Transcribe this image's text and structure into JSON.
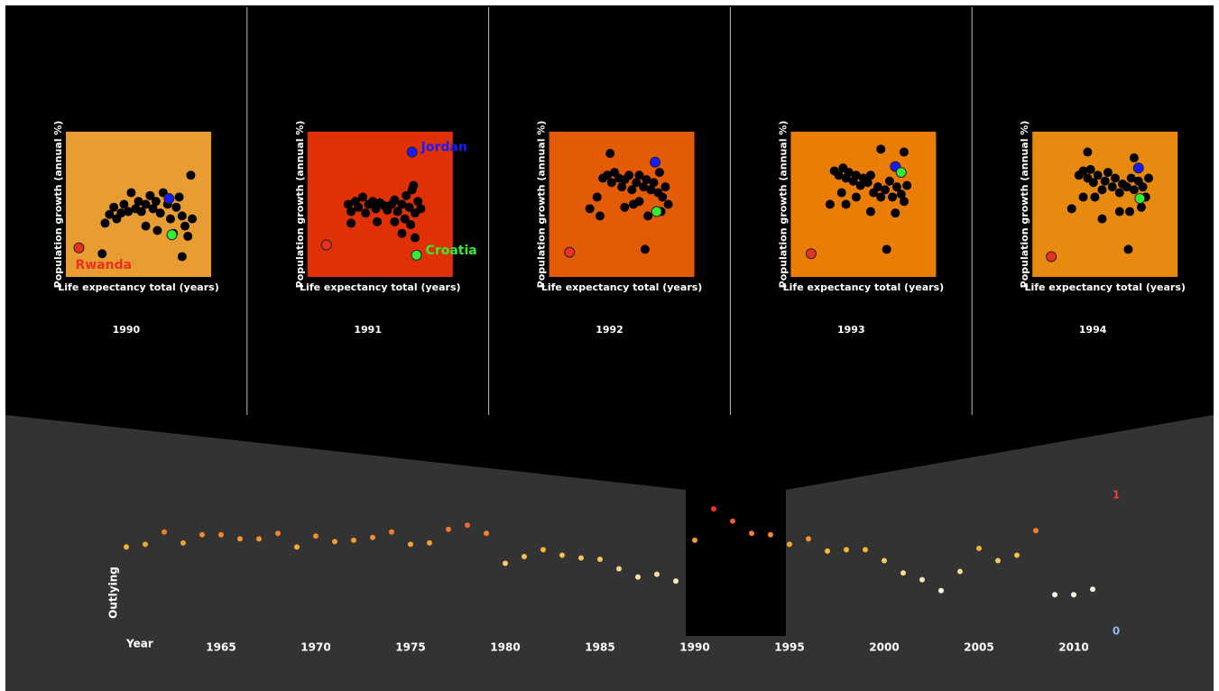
{
  "chart_data": [
    {
      "type": "scatter",
      "title": 1990,
      "xlabel": "Life expectancy total (years)",
      "ylabel": "Population growth (annual %)",
      "background": "#e89d33",
      "xlim": [
        0,
        1
      ],
      "ylim": [
        0,
        1
      ],
      "series": [
        {
          "color": "#000000",
          "x": [
            0.27,
            0.3,
            0.33,
            0.35,
            0.38,
            0.4,
            0.43,
            0.45,
            0.48,
            0.5,
            0.52,
            0.55,
            0.58,
            0.6,
            0.62,
            0.65,
            0.67,
            0.7,
            0.72,
            0.74,
            0.76,
            0.78,
            0.8,
            0.82,
            0.84,
            0.86,
            0.87,
            0.8,
            0.25,
            0.55,
            0.63
          ],
          "y": [
            0.37,
            0.43,
            0.48,
            0.4,
            0.44,
            0.5,
            0.45,
            0.58,
            0.47,
            0.52,
            0.45,
            0.5,
            0.56,
            0.47,
            0.52,
            0.44,
            0.58,
            0.5,
            0.4,
            0.3,
            0.48,
            0.55,
            0.42,
            0.35,
            0.28,
            0.7,
            0.4,
            0.14,
            0.16,
            0.35,
            0.32
          ]
        },
        {
          "name": "Rwanda",
          "color": "#e8311f",
          "x": [
            0.09
          ],
          "y": [
            0.2
          ]
        },
        {
          "color": "#1a1aff",
          "x": [
            0.71
          ],
          "y": [
            0.54
          ]
        },
        {
          "color": "#33ee33",
          "x": [
            0.73
          ],
          "y": [
            0.29
          ]
        }
      ]
    },
    {
      "type": "scatter",
      "title": 1991,
      "xlabel": "Life expectancy total (years)",
      "ylabel": "Population growth (annual %)",
      "background": "#e03005",
      "xlim": [
        0,
        1
      ],
      "ylim": [
        0,
        1
      ],
      "series": [
        {
          "color": "#000000",
          "x": [
            0.28,
            0.3,
            0.33,
            0.35,
            0.38,
            0.4,
            0.42,
            0.45,
            0.47,
            0.5,
            0.53,
            0.55,
            0.58,
            0.6,
            0.62,
            0.65,
            0.67,
            0.68,
            0.7,
            0.72,
            0.74,
            0.76,
            0.78,
            0.73,
            0.71,
            0.65,
            0.74,
            0.48,
            0.3,
            0.6
          ],
          "y": [
            0.5,
            0.45,
            0.52,
            0.48,
            0.55,
            0.44,
            0.5,
            0.52,
            0.47,
            0.51,
            0.49,
            0.46,
            0.5,
            0.53,
            0.45,
            0.5,
            0.4,
            0.56,
            0.48,
            0.6,
            0.44,
            0.52,
            0.47,
            0.63,
            0.36,
            0.3,
            0.27,
            0.38,
            0.37,
            0.38
          ]
        },
        {
          "color": "#e8311f",
          "x": [
            0.13
          ],
          "y": [
            0.22
          ]
        },
        {
          "name": "Jordan",
          "color": "#1a1aff",
          "x": [
            0.72
          ],
          "y": [
            0.86
          ]
        },
        {
          "name": "Croatia",
          "color": "#33ee33",
          "x": [
            0.75
          ],
          "y": [
            0.15
          ]
        }
      ]
    },
    {
      "type": "scatter",
      "title": 1992,
      "xlabel": "Life expectancy total (years)",
      "ylabel": "Population growth (annual %)",
      "background": "#e35b05",
      "xlim": [
        0,
        1
      ],
      "ylim": [
        0,
        1
      ],
      "series": [
        {
          "color": "#000000",
          "x": [
            0.37,
            0.4,
            0.43,
            0.45,
            0.48,
            0.5,
            0.52,
            0.55,
            0.57,
            0.6,
            0.62,
            0.65,
            0.67,
            0.7,
            0.72,
            0.75,
            0.78,
            0.8,
            0.82,
            0.76,
            0.42,
            0.28,
            0.35,
            0.52,
            0.62,
            0.68,
            0.77,
            0.66,
            0.33,
            0.58
          ],
          "y": [
            0.68,
            0.7,
            0.65,
            0.72,
            0.68,
            0.62,
            0.67,
            0.7,
            0.6,
            0.65,
            0.7,
            0.62,
            0.67,
            0.6,
            0.65,
            0.58,
            0.55,
            0.62,
            0.5,
            0.72,
            0.85,
            0.47,
            0.42,
            0.48,
            0.52,
            0.42,
            0.45,
            0.19,
            0.55,
            0.5
          ]
        },
        {
          "color": "#e8311f",
          "x": [
            0.14
          ],
          "y": [
            0.17
          ]
        },
        {
          "color": "#1a1aff",
          "x": [
            0.73
          ],
          "y": [
            0.79
          ]
        },
        {
          "color": "#33ee33",
          "x": [
            0.74
          ],
          "y": [
            0.45
          ]
        }
      ]
    },
    {
      "type": "scatter",
      "title": 1993,
      "xlabel": "Life expectancy total (years)",
      "ylabel": "Population growth (annual %)",
      "background": "#ea7d05",
      "xlim": [
        0,
        1
      ],
      "ylim": [
        0,
        1
      ],
      "series": [
        {
          "color": "#000000",
          "x": [
            0.3,
            0.33,
            0.36,
            0.38,
            0.4,
            0.43,
            0.45,
            0.48,
            0.5,
            0.53,
            0.55,
            0.57,
            0.6,
            0.62,
            0.65,
            0.68,
            0.7,
            0.73,
            0.76,
            0.78,
            0.62,
            0.78,
            0.27,
            0.38,
            0.45,
            0.55,
            0.72,
            0.66,
            0.35,
            0.8
          ],
          "y": [
            0.73,
            0.7,
            0.75,
            0.68,
            0.72,
            0.66,
            0.7,
            0.63,
            0.68,
            0.65,
            0.7,
            0.58,
            0.62,
            0.55,
            0.6,
            0.66,
            0.55,
            0.62,
            0.57,
            0.52,
            0.88,
            0.86,
            0.5,
            0.5,
            0.55,
            0.45,
            0.44,
            0.19,
            0.58,
            0.63
          ]
        },
        {
          "color": "#e8311f",
          "x": [
            0.14
          ],
          "y": [
            0.16
          ]
        },
        {
          "color": "#1a1aff",
          "x": [
            0.72
          ],
          "y": [
            0.76
          ]
        },
        {
          "color": "#33ee33",
          "x": [
            0.76
          ],
          "y": [
            0.72
          ]
        }
      ]
    },
    {
      "type": "scatter",
      "title": 1994,
      "xlabel": "Life expectancy total (years)",
      "ylabel": "Population growth (annual %)",
      "background": "#e88a10",
      "xlim": [
        0,
        1
      ],
      "ylim": [
        0,
        1
      ],
      "series": [
        {
          "color": "#000000",
          "x": [
            0.32,
            0.35,
            0.38,
            0.4,
            0.42,
            0.45,
            0.48,
            0.5,
            0.52,
            0.55,
            0.57,
            0.6,
            0.62,
            0.65,
            0.68,
            0.7,
            0.73,
            0.76,
            0.78,
            0.8,
            0.38,
            0.7,
            0.27,
            0.35,
            0.48,
            0.6,
            0.67,
            0.66,
            0.43,
            0.75
          ],
          "y": [
            0.7,
            0.73,
            0.68,
            0.74,
            0.65,
            0.7,
            0.6,
            0.66,
            0.72,
            0.62,
            0.68,
            0.58,
            0.64,
            0.62,
            0.68,
            0.6,
            0.66,
            0.62,
            0.55,
            0.68,
            0.86,
            0.82,
            0.47,
            0.55,
            0.4,
            0.45,
            0.45,
            0.19,
            0.55,
            0.48
          ]
        },
        {
          "color": "#e8311f",
          "x": [
            0.13
          ],
          "y": [
            0.14
          ]
        },
        {
          "color": "#1a1aff",
          "x": [
            0.73
          ],
          "y": [
            0.75
          ]
        },
        {
          "color": "#33ee33",
          "x": [
            0.74
          ],
          "y": [
            0.54
          ]
        }
      ]
    },
    {
      "type": "dot",
      "xlabel": "Year",
      "ylabel": "Outlying",
      "x": [
        1960,
        1961,
        1962,
        1963,
        1964,
        1965,
        1966,
        1967,
        1968,
        1969,
        1970,
        1971,
        1972,
        1973,
        1974,
        1975,
        1976,
        1977,
        1978,
        1979,
        1980,
        1981,
        1982,
        1983,
        1984,
        1985,
        1986,
        1987,
        1988,
        1989,
        1990,
        1991,
        1992,
        1993,
        1994,
        1995,
        1996,
        1997,
        1998,
        1999,
        2000,
        2001,
        2002,
        2003,
        2004,
        2005,
        2006,
        2007,
        2008,
        2009,
        2010,
        2011
      ],
      "values": [
        0.62,
        0.64,
        0.73,
        0.65,
        0.71,
        0.71,
        0.68,
        0.68,
        0.72,
        0.62,
        0.7,
        0.66,
        0.67,
        0.69,
        0.73,
        0.64,
        0.65,
        0.75,
        0.78,
        0.72,
        0.5,
        0.55,
        0.6,
        0.56,
        0.54,
        0.53,
        0.46,
        0.4,
        0.42,
        0.37,
        0.67,
        0.9,
        0.81,
        0.72,
        0.71,
        0.64,
        0.68,
        0.59,
        0.6,
        0.6,
        0.52,
        0.43,
        0.38,
        0.3,
        0.44,
        0.61,
        0.52,
        0.56,
        0.74,
        0.27,
        0.27,
        0.31
      ],
      "xlim": [
        1959.5,
        2011.5
      ],
      "xticks": [
        1965,
        1970,
        1975,
        1980,
        1985,
        1990,
        1995,
        2000,
        2005,
        2010
      ],
      "ylim": [
        0,
        1
      ],
      "yticks": [
        0,
        1
      ]
    }
  ]
}
